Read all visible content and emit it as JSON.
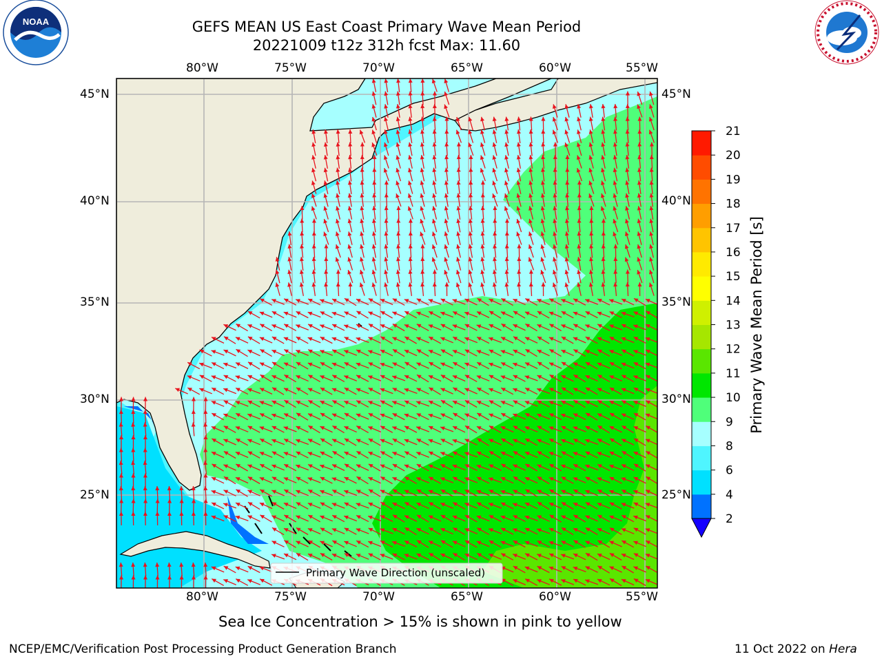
{
  "title": {
    "line1": "GEFS MEAN US East Coast Primary Wave Mean Period",
    "line2": "20221009 t12z 312h fcst   Max: 11.60"
  },
  "map": {
    "lon_labels": [
      "80°W",
      "75°W",
      "70°W",
      "65°W",
      "60°W",
      "55°W"
    ],
    "lat_labels": [
      "45°N",
      "40°N",
      "35°N",
      "30°N",
      "25°N"
    ],
    "legend_label": "Primary Wave Direction (unscaled)",
    "arrow_color": "#e8141e",
    "land_color": "#efeddc"
  },
  "colorbar": {
    "label": "Primary Wave Mean Period [s]",
    "ticks": [
      "2",
      "4",
      "6",
      "8",
      "9",
      "10",
      "11",
      "12",
      "13",
      "14",
      "15",
      "16",
      "17",
      "18",
      "19",
      "20",
      "21"
    ],
    "colors": [
      "#0072ff",
      "#00e0ff",
      "#4ff5ff",
      "#a6ffff",
      "#4fff7a",
      "#00e600",
      "#5ae600",
      "#a6e600",
      "#cff000",
      "#ffff00",
      "#ffea00",
      "#ffc400",
      "#ff9e00",
      "#ff7300",
      "#ff4c00",
      "#ff1a00"
    ],
    "extend_color": "#1400ff"
  },
  "subtitle": "Sea Ice Concentration > 15% is shown in pink to yellow",
  "footer": {
    "left": "NCEP/EMC/Verification Post Processing Product Generation Branch",
    "date": "11 Oct 2022 on ",
    "host": "Hera"
  },
  "logos": {
    "noaa": "NOAA",
    "nws": "NATIONAL WEATHER SERVICE"
  }
}
